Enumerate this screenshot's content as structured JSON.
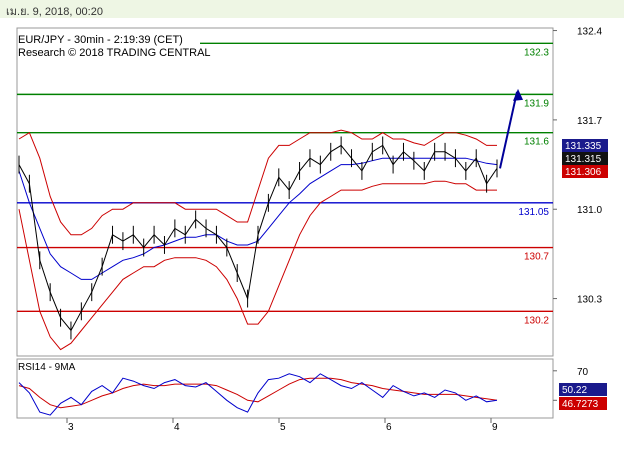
{
  "header": {
    "timestamp": "เม.ย. 9, 2018, 00:20"
  },
  "chart_data": {
    "type": "line",
    "title": "EUR/JPY - 30min - 2:19:39 (CET)",
    "subtitle": "Research © 2018 TRADING CENTRAL",
    "ylim": [
      129.85,
      132.42
    ],
    "y_ticks": [
      "132.4",
      "131.7",
      "131.0",
      "130.3"
    ],
    "x_ticks": [
      {
        "label": "3",
        "pos": 0
      },
      {
        "label": "4",
        "pos": 1
      },
      {
        "label": "5",
        "pos": 2
      },
      {
        "label": "6",
        "pos": 3
      },
      {
        "label": "9",
        "pos": 4
      }
    ],
    "levels": [
      {
        "value": 132.3,
        "label": "132.3",
        "color": "#008000"
      },
      {
        "value": 131.9,
        "label": "131.9",
        "color": "#008000"
      },
      {
        "value": 131.6,
        "label": "131.6",
        "color": "#008000"
      },
      {
        "value": 131.05,
        "label": "131.05",
        "color": "#0000cc"
      },
      {
        "value": 130.7,
        "label": "130.7",
        "color": "#cc0000"
      },
      {
        "value": 130.2,
        "label": "130.2",
        "color": "#cc0000"
      }
    ],
    "price_tags": [
      {
        "value": 131.335,
        "label": "131.335",
        "color": "#1a1a8c"
      },
      {
        "value": 131.315,
        "label": "131.315",
        "color": "#111111"
      },
      {
        "value": 131.306,
        "label": "131.306",
        "color": "#cc0000"
      }
    ],
    "series": [
      {
        "role": "price",
        "color": "#000000",
        "values": [
          131.35,
          131.2,
          130.6,
          130.35,
          130.15,
          130.05,
          130.2,
          130.35,
          130.55,
          130.8,
          130.75,
          130.8,
          130.7,
          130.8,
          130.72,
          130.85,
          130.8,
          130.92,
          130.85,
          130.8,
          130.7,
          130.5,
          130.3,
          130.8,
          131.05,
          131.25,
          131.15,
          131.3,
          131.4,
          131.35,
          131.45,
          131.5,
          131.4,
          131.3,
          131.45,
          131.5,
          131.35,
          131.45,
          131.38,
          131.3,
          131.45,
          131.45,
          131.4,
          131.3,
          131.4,
          131.2,
          131.32
        ]
      },
      {
        "role": "moving-average",
        "color": "#0000cc",
        "values": [
          131.3,
          131.05,
          130.85,
          130.65,
          130.55,
          130.5,
          130.45,
          130.45,
          130.5,
          130.55,
          130.6,
          130.62,
          130.65,
          130.7,
          130.72,
          130.75,
          130.78,
          130.78,
          130.8,
          130.8,
          130.75,
          130.72,
          130.72,
          130.75,
          130.85,
          130.95,
          131.05,
          131.12,
          131.2,
          131.25,
          131.3,
          131.35,
          131.35,
          131.36,
          131.38,
          131.4,
          131.4,
          131.4,
          131.4,
          131.4,
          131.4,
          131.4,
          131.4,
          131.4,
          131.38,
          131.36,
          131.35
        ]
      },
      {
        "role": "bollinger-upper",
        "color": "#cc0000",
        "values": [
          131.55,
          131.6,
          131.4,
          131.1,
          130.9,
          130.8,
          130.8,
          130.85,
          130.95,
          131.0,
          131.0,
          131.05,
          131.05,
          131.05,
          131.05,
          131.05,
          131.0,
          131.0,
          131.0,
          131.0,
          130.95,
          130.9,
          130.9,
          131.15,
          131.4,
          131.5,
          131.5,
          131.55,
          131.6,
          131.6,
          131.6,
          131.62,
          131.6,
          131.55,
          131.55,
          131.6,
          131.55,
          131.55,
          131.52,
          131.5,
          131.55,
          131.6,
          131.6,
          131.58,
          131.55,
          131.5,
          131.5
        ]
      },
      {
        "role": "bollinger-lower",
        "color": "#cc0000",
        "values": [
          131.0,
          130.6,
          130.2,
          130.0,
          129.9,
          129.95,
          130.05,
          130.15,
          130.25,
          130.35,
          130.45,
          130.5,
          130.55,
          130.55,
          130.6,
          130.62,
          130.62,
          130.62,
          130.6,
          130.55,
          130.45,
          130.3,
          130.1,
          130.1,
          130.2,
          130.4,
          130.6,
          130.8,
          130.95,
          131.05,
          131.1,
          131.15,
          131.15,
          131.15,
          131.18,
          131.2,
          131.2,
          131.2,
          131.2,
          131.2,
          131.22,
          131.22,
          131.2,
          131.2,
          131.15,
          131.15,
          131.15
        ]
      }
    ],
    "forecast": {
      "from": 131.32,
      "to": 131.92,
      "color": "#000099"
    },
    "rsi": {
      "label": "RSI14 - 9MA",
      "ylim": [
        38,
        78
      ],
      "ticks": [
        "70",
        "50"
      ],
      "value_tags": [
        {
          "value": 50.22,
          "label": "50.22",
          "color": "#1a1a8c"
        },
        {
          "value": 46.7273,
          "label": "46.7273",
          "color": "#cc0000"
        }
      ],
      "rsi_values": [
        62,
        55,
        42,
        40,
        48,
        52,
        47,
        56,
        60,
        55,
        65,
        63,
        60,
        58,
        62,
        64,
        60,
        59,
        62,
        56,
        50,
        45,
        42,
        55,
        64,
        65,
        68,
        66,
        62,
        68,
        64,
        60,
        58,
        62,
        57,
        52,
        60,
        56,
        53,
        55,
        52,
        57,
        55,
        50,
        53,
        49,
        50
      ],
      "ma_values": [
        60,
        58,
        52,
        47,
        45,
        46,
        47,
        50,
        53,
        55,
        58,
        60,
        61,
        60,
        60,
        61,
        61,
        61,
        61,
        60,
        57,
        54,
        50,
        49,
        53,
        57,
        61,
        64,
        65,
        65,
        65,
        64,
        62,
        61,
        60,
        58,
        57,
        56,
        55,
        54,
        54,
        54,
        54,
        53,
        52,
        51,
        50
      ]
    }
  }
}
